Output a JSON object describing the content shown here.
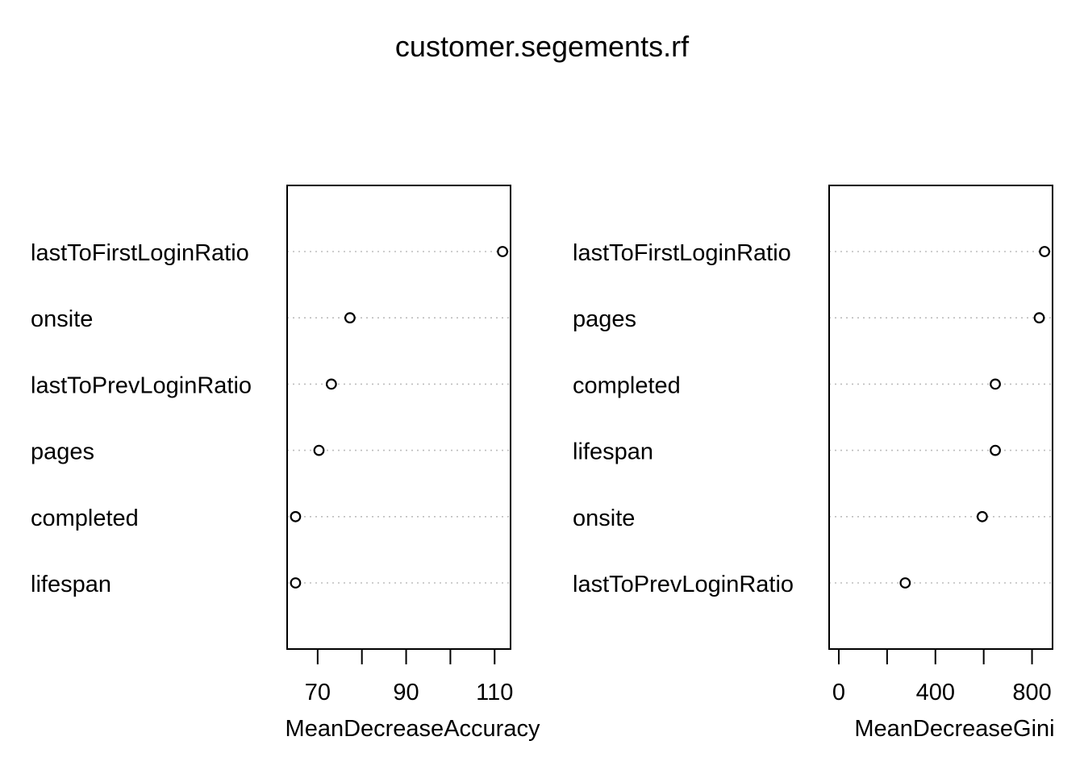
{
  "title": "customer.segements.rf",
  "chart_data": [
    {
      "type": "scatter",
      "xlabel": "MeanDecreaseAccuracy",
      "xlim": [
        63.1,
        113.6
      ],
      "xticks": [
        70,
        80,
        90,
        100,
        110
      ],
      "xtick_labels": [
        "70",
        "",
        "90",
        "",
        "110"
      ],
      "categories": [
        "lastToFirstLoginRatio",
        "onsite",
        "lastToPrevLoginRatio",
        "pages",
        "completed",
        "lifespan"
      ],
      "values": [
        111.8,
        77.3,
        73.1,
        70.3,
        65.0,
        65.0
      ],
      "grid": "dotted-horizontal",
      "marker": "open-circle"
    },
    {
      "type": "scatter",
      "xlabel": "MeanDecreaseGini",
      "xlim": [
        -40,
        885
      ],
      "xticks": [
        0,
        200,
        400,
        600,
        800
      ],
      "xtick_labels": [
        "0",
        "",
        "400",
        "",
        "800"
      ],
      "categories": [
        "lastToFirstLoginRatio",
        "pages",
        "completed",
        "lifespan",
        "onsite",
        "lastToPrevLoginRatio"
      ],
      "values": [
        852,
        830,
        648,
        648,
        594,
        275
      ],
      "grid": "dotted-horizontal",
      "marker": "open-circle"
    }
  ]
}
